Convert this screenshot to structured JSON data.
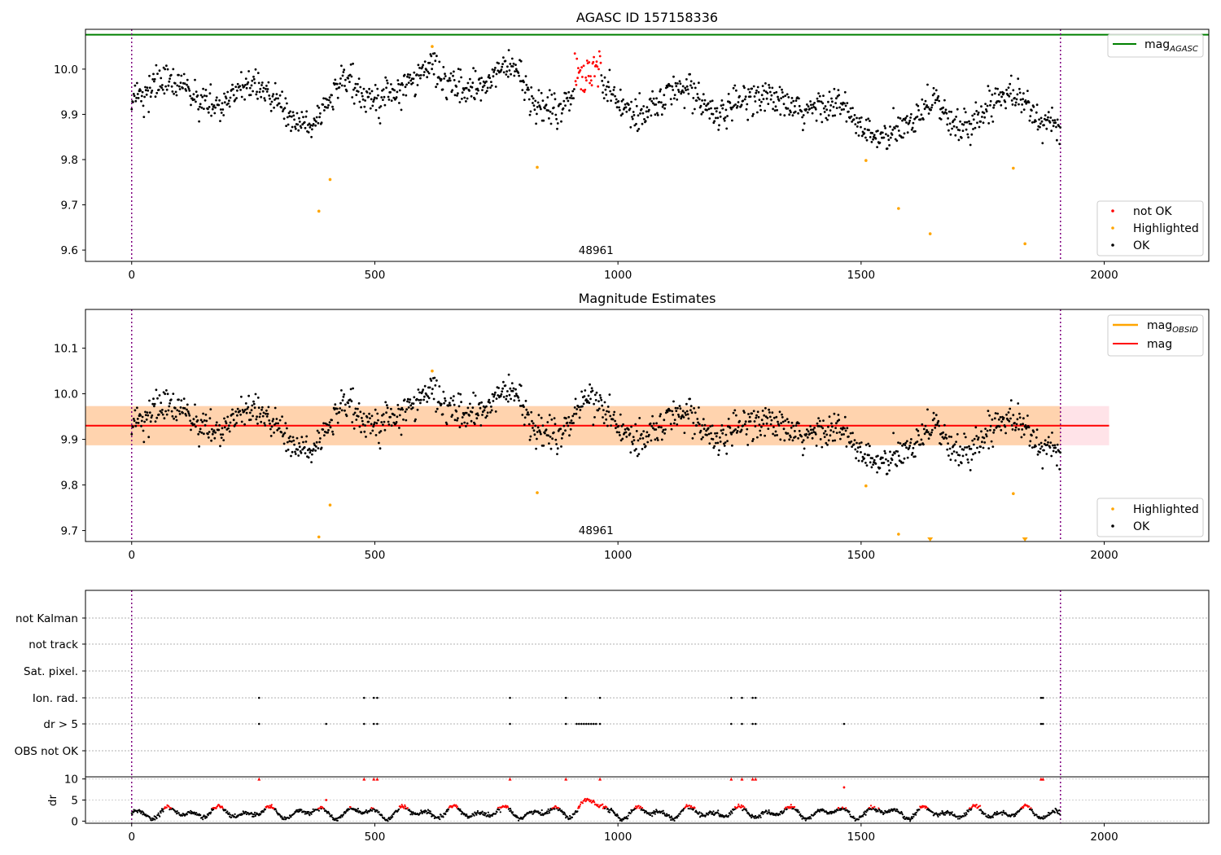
{
  "chart_data": [
    {
      "type": "scatter",
      "title": "AGASC ID 157158336",
      "xlim": [
        -95,
        2215
      ],
      "ylim": [
        9.575,
        10.088
      ],
      "yticks": [
        9.6,
        9.7,
        9.8,
        9.9,
        10.0
      ],
      "ytick_labels": [
        "9.6",
        "9.7",
        "9.8",
        "9.9",
        "10.0"
      ],
      "xticks": [
        0,
        500,
        1000,
        1500,
        2000
      ],
      "xtick_labels": [
        "0",
        "500",
        "1000",
        "1500",
        "2000"
      ],
      "obsid_boundaries": [
        0,
        1910
      ],
      "obsid_label": {
        "text": "48961",
        "x": 955
      },
      "mag_agasc": 10.076,
      "legend_top": [
        {
          "label": "mag",
          "subscript": "AGASC",
          "color": "#008000"
        }
      ],
      "legend_bottom": [
        {
          "label": "not OK",
          "color": "#ff0000"
        },
        {
          "label": "Highlighted",
          "color": "#ffa500"
        },
        {
          "label": "OK",
          "color": "#000000"
        }
      ],
      "highlighted_points": [
        [
          385,
          9.686
        ],
        [
          408,
          9.756
        ],
        [
          618,
          10.05
        ],
        [
          834,
          9.783
        ],
        [
          1510,
          9.798
        ],
        [
          1577,
          9.692
        ],
        [
          1642,
          9.636
        ],
        [
          1813,
          9.781
        ],
        [
          1837,
          9.614
        ]
      ],
      "not_ok_range": [
        910,
        965
      ],
      "not_ok_level": 9.99,
      "grid": false,
      "legend_placement": "upper right / lower right"
    },
    {
      "type": "scatter",
      "title": "Magnitude Estimates",
      "xlim": [
        -95,
        2215
      ],
      "ylim": [
        9.676,
        10.185
      ],
      "yticks": [
        9.7,
        9.8,
        9.9,
        10.0,
        10.1
      ],
      "ytick_labels": [
        "9.7",
        "9.8",
        "9.9",
        "10.0",
        "10.1"
      ],
      "xticks": [
        0,
        500,
        1000,
        1500,
        2000
      ],
      "xtick_labels": [
        "0",
        "500",
        "1000",
        "1500",
        "2000"
      ],
      "obsid_boundaries": [
        0,
        1910
      ],
      "obsid_label": {
        "text": "48961",
        "x": 955
      },
      "mag": 9.93,
      "mag_band": [
        9.887,
        9.973
      ],
      "mag_obsid": 9.93,
      "mag_obsid_band": [
        9.887,
        9.973
      ],
      "legend_top": [
        {
          "label": "mag",
          "subscript": "OBSID",
          "color": "#ffa500"
        },
        {
          "label": "mag",
          "subscript": "",
          "color": "#ff0000"
        }
      ],
      "legend_bottom": [
        {
          "label": "Highlighted",
          "color": "#ffa500"
        },
        {
          "label": "OK",
          "color": "#000000"
        }
      ],
      "highlighted_points": [
        [
          385,
          9.686
        ],
        [
          408,
          9.756
        ],
        [
          618,
          10.05
        ],
        [
          834,
          9.783
        ],
        [
          1510,
          9.798
        ],
        [
          1577,
          9.692
        ],
        [
          1813,
          9.781
        ]
      ],
      "offscale_markers": [
        1642,
        1837
      ],
      "grid": false
    },
    {
      "type": "scatter",
      "title": "",
      "xlim": [
        -95,
        2215
      ],
      "flag_rows": [
        "not Kalman",
        "not track",
        "Sat. pixel.",
        "Ion. rad.",
        "dr > 5",
        "OBS not OK"
      ],
      "flag_points": {
        "Ion. rad.": [
          262,
          478,
          498,
          505,
          778,
          893,
          963,
          1233,
          1255,
          1277,
          1283,
          1870,
          1874
        ],
        "dr > 5": [
          262,
          400,
          478,
          498,
          505,
          778,
          893,
          915,
          920,
          925,
          930,
          935,
          940,
          945,
          950,
          955,
          963,
          1233,
          1255,
          1277,
          1283,
          1465,
          1870,
          1874
        ]
      },
      "dr_ylabel": "dr",
      "dr_ylim": [
        -0.5,
        10.5
      ],
      "dr_yticks": [
        0,
        5,
        10
      ],
      "dr_ytick_labels": [
        "0",
        "5",
        "10"
      ],
      "dr_threshold": 3,
      "dr_spikes": [
        262,
        478,
        498,
        505,
        778,
        893,
        963,
        1233,
        1255,
        1277,
        1283,
        1870,
        1874
      ],
      "dr_secondary": [
        [
          400,
          5
        ],
        [
          1465,
          8
        ]
      ],
      "xticks": [
        0,
        500,
        1000,
        1500,
        2000
      ],
      "xtick_labels": [
        "0",
        "500",
        "1000",
        "1500",
        "2000"
      ],
      "obsid_boundaries": [
        0,
        1910
      ]
    }
  ]
}
